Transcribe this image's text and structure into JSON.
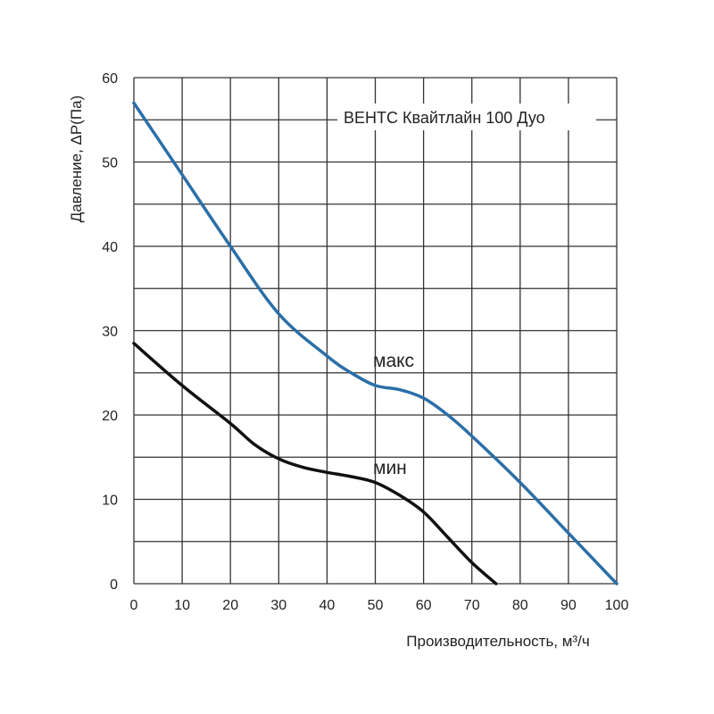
{
  "chart_data": {
    "type": "line",
    "title": "ВЕНТС Квайтлайн 100 Дуо",
    "xlabel": "Производительность, м³/ч",
    "ylabel": "Давление,  ΔP(Па)",
    "xlim": [
      0,
      100
    ],
    "ylim": [
      0,
      60
    ],
    "x_ticks": [
      0,
      10,
      20,
      30,
      40,
      50,
      60,
      70,
      80,
      90,
      100
    ],
    "y_ticks": [
      0,
      10,
      20,
      30,
      40,
      50,
      60
    ],
    "grid": true,
    "series": [
      {
        "name": "макс",
        "color": "#2a6fa8",
        "x": [
          0,
          10,
          20,
          30,
          40,
          45,
          50,
          55,
          60,
          65,
          70,
          80,
          90,
          100
        ],
        "y": [
          57,
          48.5,
          40,
          32,
          27,
          25,
          23.5,
          23,
          22,
          20,
          17.5,
          12,
          6,
          0
        ]
      },
      {
        "name": "мин",
        "color": "#111111",
        "x": [
          0,
          10,
          20,
          25,
          30,
          35,
          40,
          45,
          50,
          55,
          60,
          65,
          70,
          75
        ],
        "y": [
          28.5,
          23.5,
          19,
          16.5,
          14.8,
          13.8,
          13.2,
          12.7,
          12,
          10.5,
          8.5,
          5.5,
          2.5,
          0
        ]
      }
    ]
  }
}
